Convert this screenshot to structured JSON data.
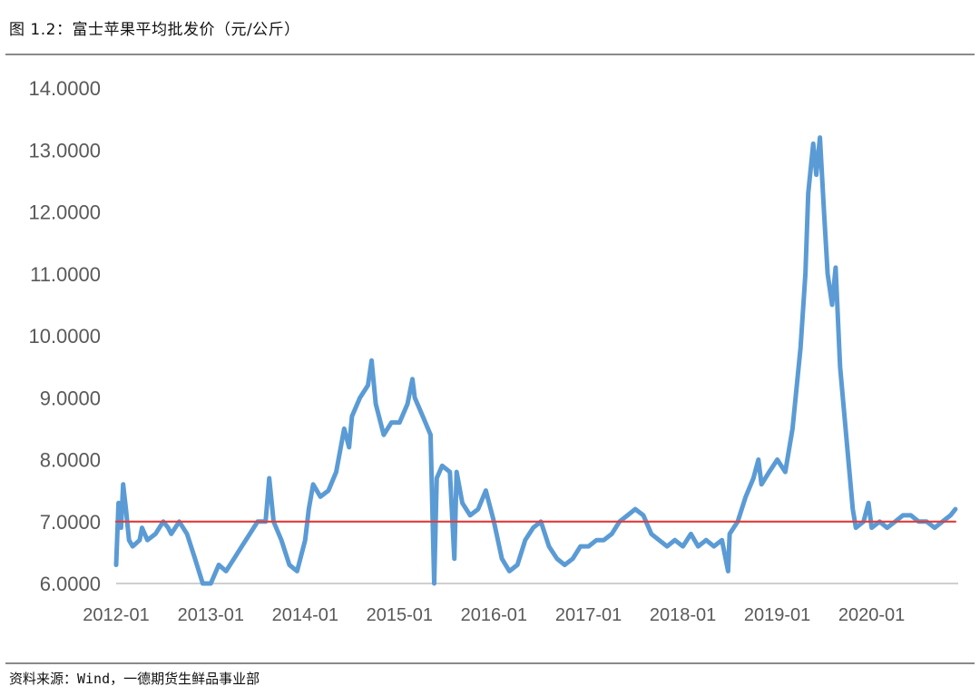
{
  "title": "图 1.2：富士苹果平均批发价（元/公斤）",
  "source": "资料来源：Wind，一德期货生鲜品事业部",
  "chart_data": {
    "type": "line",
    "title": "",
    "xlabel": "",
    "ylabel": "",
    "ylim": [
      6,
      14
    ],
    "yticks": [
      "14.0000",
      "13.0000",
      "12.0000",
      "11.0000",
      "10.0000",
      "9.0000",
      "8.0000",
      "7.0000",
      "6.0000"
    ],
    "ytick_values": [
      14,
      13,
      12,
      11,
      10,
      9,
      8,
      7,
      6
    ],
    "xticks": [
      "2012-01",
      "2013-01",
      "2014-01",
      "2015-01",
      "2016-01",
      "2017-01",
      "2018-01",
      "2019-01",
      "2020-01"
    ],
    "grid": false,
    "legend": "none",
    "series": [
      {
        "color": "#5b9bd5",
        "points": [
          [
            "2012-01-01",
            6.3
          ],
          [
            "2012-01-10",
            7.3
          ],
          [
            "2012-01-20",
            6.9
          ],
          [
            "2012-01-28",
            7.6
          ],
          [
            "2012-02-08",
            7.2
          ],
          [
            "2012-02-20",
            6.7
          ],
          [
            "2012-03-05",
            6.6
          ],
          [
            "2012-04-01",
            6.7
          ],
          [
            "2012-04-10",
            6.9
          ],
          [
            "2012-05-01",
            6.7
          ],
          [
            "2012-06-01",
            6.8
          ],
          [
            "2012-07-01",
            7.0
          ],
          [
            "2012-07-20",
            6.9
          ],
          [
            "2012-08-01",
            6.8
          ],
          [
            "2012-09-01",
            7.0
          ],
          [
            "2012-10-01",
            6.8
          ],
          [
            "2012-11-01",
            6.4
          ],
          [
            "2012-12-01",
            6.0
          ],
          [
            "2013-01-01",
            6.0
          ],
          [
            "2013-02-01",
            6.3
          ],
          [
            "2013-03-01",
            6.2
          ],
          [
            "2013-04-01",
            6.4
          ],
          [
            "2013-05-01",
            6.6
          ],
          [
            "2013-06-01",
            6.8
          ],
          [
            "2013-07-01",
            7.0
          ],
          [
            "2013-08-01",
            7.0
          ],
          [
            "2013-08-15",
            7.7
          ],
          [
            "2013-09-01",
            7.0
          ],
          [
            "2013-10-01",
            6.7
          ],
          [
            "2013-11-01",
            6.3
          ],
          [
            "2013-12-01",
            6.2
          ],
          [
            "2014-01-01",
            6.7
          ],
          [
            "2014-01-15",
            7.2
          ],
          [
            "2014-02-01",
            7.6
          ],
          [
            "2014-03-01",
            7.4
          ],
          [
            "2014-04-01",
            7.5
          ],
          [
            "2014-05-01",
            7.8
          ],
          [
            "2014-06-01",
            8.5
          ],
          [
            "2014-06-20",
            8.2
          ],
          [
            "2014-07-01",
            8.7
          ],
          [
            "2014-08-01",
            9.0
          ],
          [
            "2014-09-01",
            9.2
          ],
          [
            "2014-09-15",
            9.6
          ],
          [
            "2014-10-01",
            8.9
          ],
          [
            "2014-11-01",
            8.4
          ],
          [
            "2014-12-01",
            8.6
          ],
          [
            "2015-01-01",
            8.6
          ],
          [
            "2015-02-01",
            8.9
          ],
          [
            "2015-02-20",
            9.3
          ],
          [
            "2015-03-01",
            9.0
          ],
          [
            "2015-04-01",
            8.7
          ],
          [
            "2015-05-01",
            8.4
          ],
          [
            "2015-05-15",
            6.0
          ],
          [
            "2015-05-25",
            7.7
          ],
          [
            "2015-06-15",
            7.9
          ],
          [
            "2015-07-15",
            7.8
          ],
          [
            "2015-08-01",
            6.4
          ],
          [
            "2015-08-10",
            7.8
          ],
          [
            "2015-09-01",
            7.3
          ],
          [
            "2015-10-01",
            7.1
          ],
          [
            "2015-11-01",
            7.2
          ],
          [
            "2015-12-01",
            7.5
          ],
          [
            "2016-01-01",
            7.0
          ],
          [
            "2016-02-01",
            6.4
          ],
          [
            "2016-03-01",
            6.2
          ],
          [
            "2016-04-01",
            6.3
          ],
          [
            "2016-05-01",
            6.7
          ],
          [
            "2016-06-01",
            6.9
          ],
          [
            "2016-07-01",
            7.0
          ],
          [
            "2016-08-01",
            6.6
          ],
          [
            "2016-09-01",
            6.4
          ],
          [
            "2016-10-01",
            6.3
          ],
          [
            "2016-11-01",
            6.4
          ],
          [
            "2016-12-01",
            6.6
          ],
          [
            "2017-01-01",
            6.6
          ],
          [
            "2017-02-01",
            6.7
          ],
          [
            "2017-03-01",
            6.7
          ],
          [
            "2017-04-01",
            6.8
          ],
          [
            "2017-05-01",
            7.0
          ],
          [
            "2017-06-01",
            7.1
          ],
          [
            "2017-07-01",
            7.2
          ],
          [
            "2017-08-01",
            7.1
          ],
          [
            "2017-09-01",
            6.8
          ],
          [
            "2017-10-01",
            6.7
          ],
          [
            "2017-11-01",
            6.6
          ],
          [
            "2017-12-01",
            6.7
          ],
          [
            "2018-01-01",
            6.6
          ],
          [
            "2018-02-01",
            6.8
          ],
          [
            "2018-03-01",
            6.6
          ],
          [
            "2018-04-01",
            6.7
          ],
          [
            "2018-05-01",
            6.6
          ],
          [
            "2018-06-01",
            6.7
          ],
          [
            "2018-06-25",
            6.2
          ],
          [
            "2018-07-01",
            6.8
          ],
          [
            "2018-08-01",
            7.0
          ],
          [
            "2018-09-01",
            7.4
          ],
          [
            "2018-10-01",
            7.7
          ],
          [
            "2018-10-20",
            8.0
          ],
          [
            "2018-11-01",
            7.6
          ],
          [
            "2018-12-01",
            7.8
          ],
          [
            "2019-01-01",
            8.0
          ],
          [
            "2019-02-01",
            7.8
          ],
          [
            "2019-03-01",
            8.5
          ],
          [
            "2019-04-01",
            9.8
          ],
          [
            "2019-04-20",
            11.0
          ],
          [
            "2019-05-01",
            12.3
          ],
          [
            "2019-05-20",
            13.1
          ],
          [
            "2019-06-01",
            12.6
          ],
          [
            "2019-06-15",
            13.2
          ],
          [
            "2019-07-01",
            12.0
          ],
          [
            "2019-07-15",
            11.0
          ],
          [
            "2019-08-01",
            10.5
          ],
          [
            "2019-08-15",
            11.1
          ],
          [
            "2019-09-01",
            9.5
          ],
          [
            "2019-10-01",
            8.1
          ],
          [
            "2019-10-20",
            7.2
          ],
          [
            "2019-11-01",
            6.9
          ],
          [
            "2019-12-01",
            7.0
          ],
          [
            "2019-12-20",
            7.3
          ],
          [
            "2020-01-01",
            6.9
          ],
          [
            "2020-02-01",
            7.0
          ],
          [
            "2020-03-01",
            6.9
          ],
          [
            "2020-04-01",
            7.0
          ],
          [
            "2020-05-01",
            7.1
          ],
          [
            "2020-06-01",
            7.1
          ],
          [
            "2020-07-01",
            7.0
          ],
          [
            "2020-08-01",
            7.0
          ],
          [
            "2020-09-01",
            6.9
          ],
          [
            "2020-10-01",
            7.0
          ],
          [
            "2020-11-01",
            7.1
          ],
          [
            "2020-11-20",
            7.2
          ]
        ]
      },
      {
        "color": "#e03c3c",
        "points": [
          [
            "2012-01-01",
            7.0
          ],
          [
            "2020-11-20",
            7.0
          ]
        ]
      }
    ]
  }
}
